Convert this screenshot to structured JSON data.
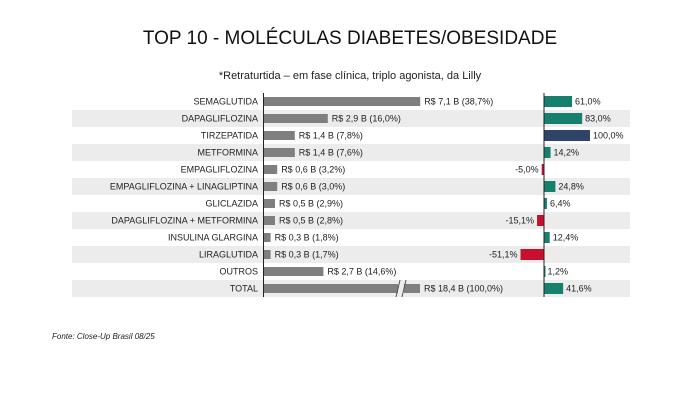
{
  "title": "TOP 10 - MOLÉCULAS DIABETES/OBESIDADE",
  "subtitle": "*Retraturtida – em fase clínica, triplo agonista, da Lilly",
  "source": "Fonte: Close-Up Brasil 08/25",
  "colors": {
    "sales_bar": "#7f7f7f",
    "growth_positive": "#17806d",
    "growth_highlight": "#2e4468",
    "growth_negative": "#c8102e",
    "row_stripe": "#ececec"
  },
  "chart_data": {
    "type": "bar",
    "categories": [
      "SEMAGLUTIDA",
      "DAPAGLIFLOZINA",
      "TIRZEPATIDA",
      "METFORMINA",
      "EMPAGLIFLOZINA",
      "EMPAGLIFLOZINA + LINAGLIPTINA",
      "GLICLAZIDA",
      "DAPAGLIFLOZINA + METFORMINA",
      "INSULINA GLARGINA",
      "LIRAGLUTIDA",
      "OUTROS",
      "TOTAL"
    ],
    "series": [
      {
        "values": [
          7.1,
          2.9,
          1.4,
          1.4,
          0.6,
          0.6,
          0.5,
          0.5,
          0.3,
          0.3,
          2.7,
          18.4
        ],
        "labels": [
          "R$ 7,1 B (38,7%)",
          "R$ 2,9 B (16,0%)",
          "R$ 1,4 B (7,8%)",
          "R$ 1,4 B (7,6%)",
          "R$ 0,6 B (3,2%)",
          "R$ 0,6 B (3,0%)",
          "R$ 0,5 B (2,9%)",
          "R$ 0,5 B (2,8%)",
          "R$ 0,3 B (1,8%)",
          "R$ 0,3 B (1,7%)",
          "R$ 2,7 B (14,6%)",
          "R$ 18,4 B (100,0%)"
        ]
      },
      {
        "values": [
          61.0,
          83.0,
          100.0,
          14.2,
          -5.0,
          24.8,
          6.4,
          -15.1,
          12.4,
          -51.1,
          1.2,
          41.6
        ],
        "labels": [
          "61,0%",
          "83,0%",
          "100,0%",
          "14,2%",
          "-5,0%",
          "24,8%",
          "6,4%",
          "-15,1%",
          "12,4%",
          "-51,1%",
          "1,2%",
          "41,6%"
        ]
      }
    ],
    "highlight_category": "TIRZEPATIDA",
    "axis_break_category": "TOTAL"
  }
}
